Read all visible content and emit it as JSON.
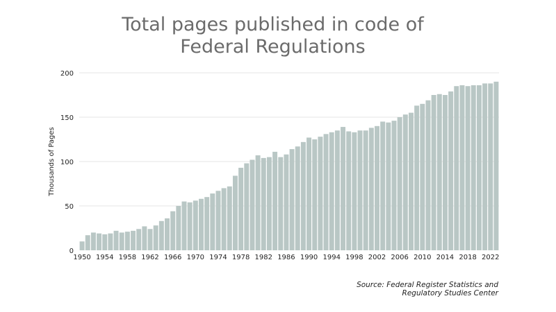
{
  "chart_data": {
    "type": "bar",
    "title": [
      "Total pages published in code of",
      "Federal Regulations"
    ],
    "xlabel": "",
    "ylabel": "Thousands of Pages",
    "ylim": [
      0,
      200
    ],
    "yticks": [
      0,
      50,
      100,
      150,
      200
    ],
    "xticks": [
      1950,
      1954,
      1958,
      1962,
      1966,
      1970,
      1974,
      1978,
      1982,
      1986,
      1990,
      1994,
      1998,
      2002,
      2006,
      2010,
      2014,
      2018,
      2022
    ],
    "grid": true,
    "bar_color": "#b9c7c5",
    "categories": [
      1950,
      1951,
      1952,
      1953,
      1954,
      1955,
      1956,
      1957,
      1958,
      1959,
      1960,
      1961,
      1962,
      1963,
      1964,
      1965,
      1966,
      1967,
      1968,
      1969,
      1970,
      1971,
      1972,
      1973,
      1974,
      1975,
      1976,
      1977,
      1978,
      1979,
      1980,
      1981,
      1982,
      1983,
      1984,
      1985,
      1986,
      1987,
      1988,
      1989,
      1990,
      1991,
      1992,
      1993,
      1994,
      1995,
      1996,
      1997,
      1998,
      1999,
      2000,
      2001,
      2002,
      2003,
      2004,
      2005,
      2006,
      2007,
      2008,
      2009,
      2010,
      2011,
      2012,
      2013,
      2014,
      2015,
      2016,
      2017,
      2018,
      2019,
      2020,
      2021,
      2022,
      2023
    ],
    "values": [
      10,
      17,
      20,
      19,
      18,
      19,
      22,
      20,
      21,
      22,
      24,
      27,
      24,
      28,
      33,
      36,
      44,
      50,
      55,
      54,
      56,
      58,
      60,
      64,
      67,
      70,
      72,
      84,
      93,
      98,
      102,
      107,
      104,
      105,
      111,
      105,
      108,
      114,
      117,
      122,
      127,
      125,
      128,
      131,
      133,
      135,
      139,
      134,
      133,
      135,
      135,
      138,
      140,
      145,
      144,
      146,
      150,
      153,
      155,
      163,
      165,
      169,
      175,
      176,
      175,
      179,
      185,
      186,
      185,
      186,
      186,
      188,
      188,
      190
    ]
  },
  "source": [
    "Source: Federal Register Statistics and",
    "Regulatory Studies Center"
  ]
}
